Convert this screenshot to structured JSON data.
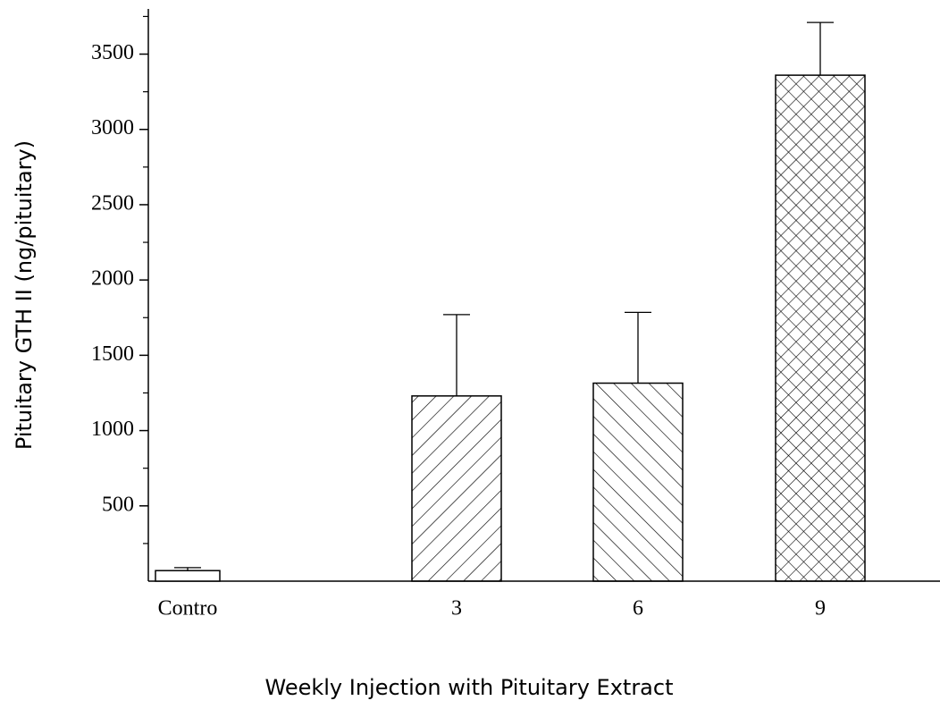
{
  "chart_data": {
    "type": "bar",
    "xlabel": "Weekly Injection with Pituitary Extract",
    "ylabel": "Pituitary GTH II (ng/pituitary)",
    "categories": [
      "Contro",
      "3",
      "6",
      "9"
    ],
    "values": [
      70,
      1230,
      1315,
      3360
    ],
    "errors": [
      20,
      540,
      470,
      350
    ],
    "hatch": [
      "none",
      "/",
      "\\",
      "x"
    ],
    "color": "#000000",
    "ylim": [
      0,
      3800
    ],
    "yticks": [
      500,
      1000,
      1500,
      2000,
      2500,
      3000,
      3500
    ],
    "minor_yticks": [
      250,
      750,
      1250,
      1750,
      2250,
      2750,
      3250,
      3750
    ],
    "grid": false
  }
}
